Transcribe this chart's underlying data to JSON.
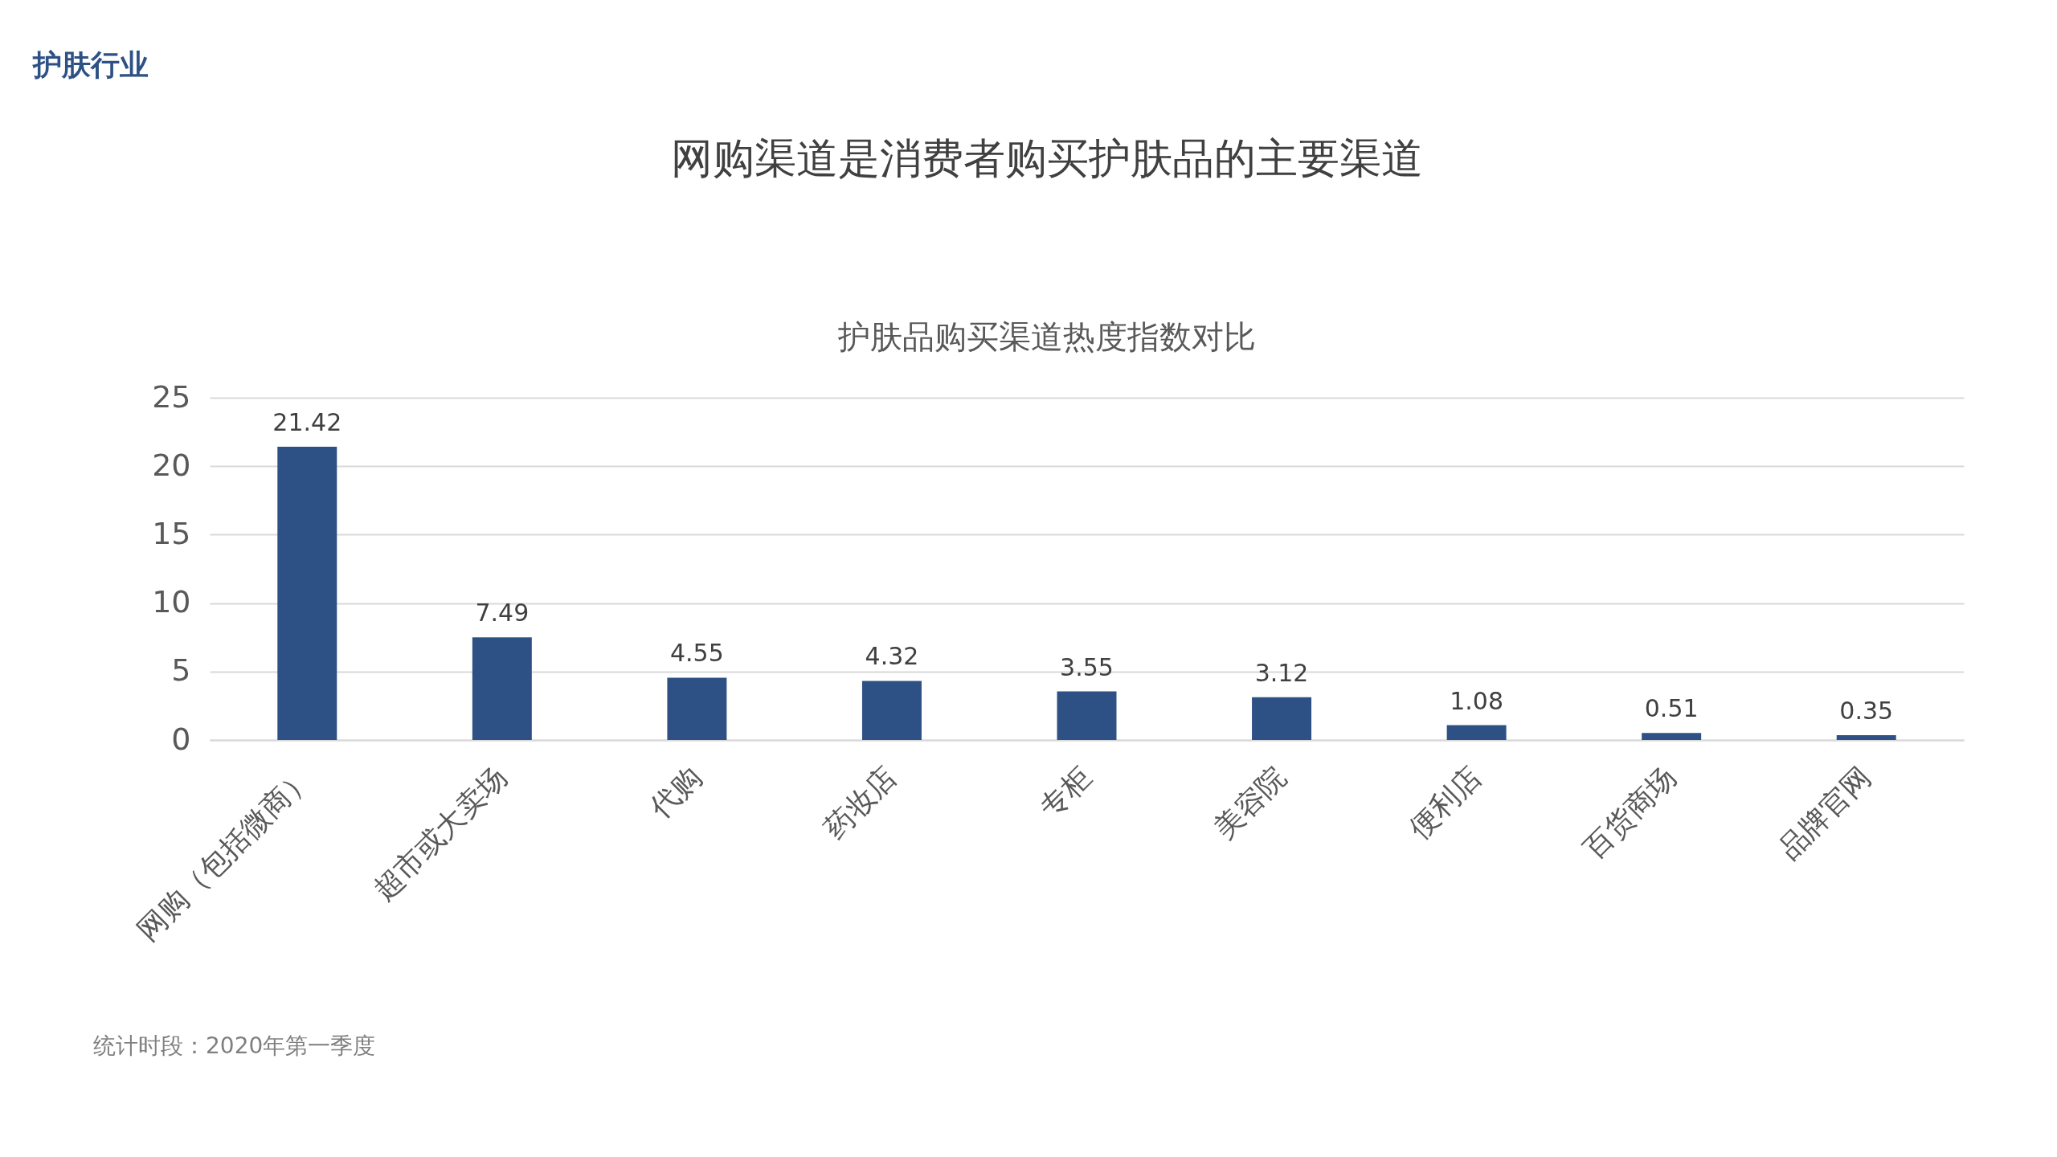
{
  "chart_data": {
    "type": "bar",
    "title": "网购渠道是消费者购买护肤品的主要渠道",
    "subtitle": "护肤品购买渠道热度指数对比",
    "categories": [
      "网购（包括微商）",
      "超市或大卖场",
      "代购",
      "药妆店",
      "专柜",
      "美容院",
      "便利店",
      "百货商场",
      "品牌官网"
    ],
    "values": [
      21.42,
      7.49,
      4.55,
      4.32,
      3.55,
      3.12,
      1.08,
      0.51,
      0.35
    ],
    "color": "#2e5185",
    "ylim": [
      0,
      25
    ],
    "yticks": [
      0,
      5,
      10,
      15,
      20,
      25
    ],
    "grid": "y",
    "data_labels": true,
    "annotations": [
      "护肤行业",
      "统计时段：2020年第一季度"
    ]
  }
}
